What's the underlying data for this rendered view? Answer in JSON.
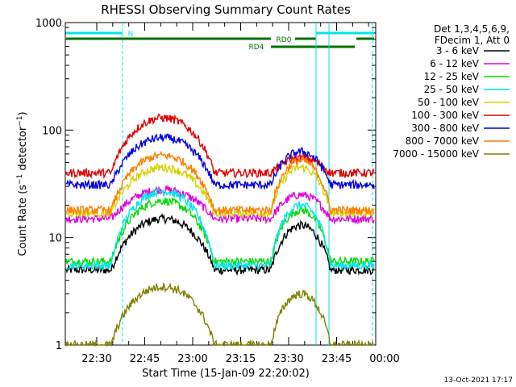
{
  "chart_data": {
    "type": "line",
    "title": "RHESSI Observing Summary Count Rates",
    "ylabel_main": "Count Rate (s",
    "ylabel_sup": "−1",
    "ylabel_mid": " detector",
    "ylabel_sup2": "−1",
    "ylabel_end": ")",
    "xlabel": "Start Time (15-Jan-09 22:20:02)",
    "date_stamp": "13-Oct-2021 17:17",
    "y_scale": "log",
    "ylim": [
      1,
      1000
    ],
    "x_ticks": [
      "22:30",
      "22:45",
      "23:00",
      "23:15",
      "23:30",
      "23:45",
      "00:00"
    ],
    "y_ticks": [
      "1",
      "10",
      "100",
      "1000"
    ],
    "legend": {
      "header1": "Det 1,3,4,5,6,9,",
      "header2": "FDecim 1, Att 0",
      "placement": "right"
    },
    "flags": {
      "night": "N",
      "rd0": "RD0",
      "rd4": "RD4"
    },
    "series": [
      {
        "name": "3 - 6 keV",
        "color": "#000000",
        "base": 5,
        "peak1": 15,
        "peak2": 13
      },
      {
        "name": "6 - 12 keV",
        "color": "#e000e0",
        "base": 15,
        "peak1": 28,
        "peak2": 25
      },
      {
        "name": "12 - 25 keV",
        "color": "#00dd00",
        "base": 6,
        "peak1": 22,
        "peak2": 18
      },
      {
        "name": "25 - 50 keV",
        "color": "#00e6e6",
        "base": 5.5,
        "peak1": 27,
        "peak2": 20
      },
      {
        "name": "50 - 100 keV",
        "color": "#d4d400",
        "base": 17,
        "peak1": 45,
        "peak2": 45
      },
      {
        "name": "100 - 300 keV",
        "color": "#e00000",
        "base": 40,
        "peak1": 130,
        "peak2": 55
      },
      {
        "name": "300 - 800 keV",
        "color": "#0000e0",
        "base": 31,
        "peak1": 85,
        "peak2": 63
      },
      {
        "name": "800 - 7000 keV",
        "color": "#ff7f00",
        "base": 18,
        "peak1": 58,
        "peak2": 52
      },
      {
        "name": "7000 - 15000 keV",
        "color": "#808000",
        "base": 1,
        "peak1": 3.5,
        "peak2": 3
      }
    ]
  }
}
